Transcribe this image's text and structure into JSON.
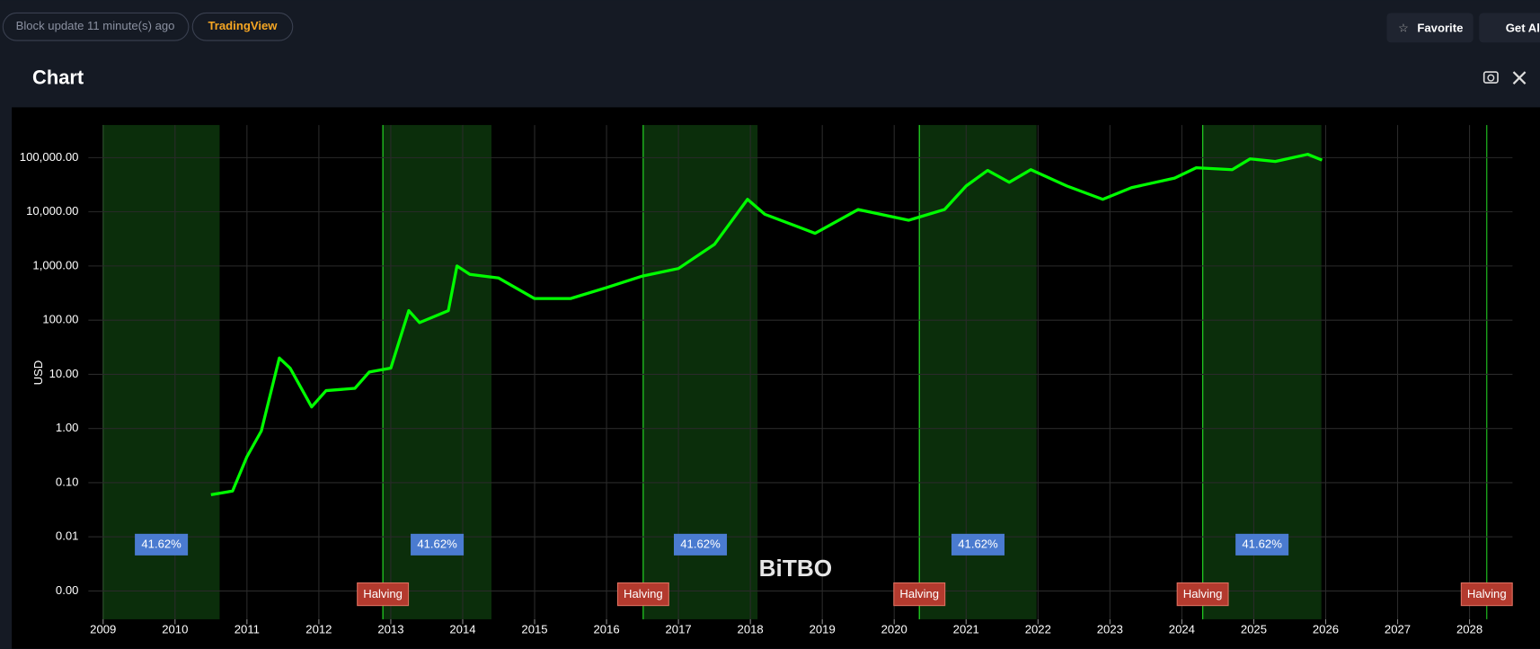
{
  "header": {
    "status": "Block update 11 minute(s) ago",
    "source": "TradingView",
    "buttons": [
      "Favorite",
      "Get Alerts"
    ]
  },
  "chart_data": {
    "type": "line",
    "title": "Chart",
    "y_label": "USD",
    "watermark": "BiTBO",
    "log_y": true,
    "grid": true,
    "xlim": [
      2007.73,
      2028.98
    ],
    "xticks": [
      2009,
      2010,
      2011,
      2012,
      2013,
      2014,
      2015,
      2016,
      2017,
      2018,
      2019,
      2020,
      2021,
      2022,
      2023,
      2024,
      2025,
      2026,
      2027,
      2028
    ],
    "ylim": [
      0.0003,
      400000
    ],
    "yticks": [
      {
        "value": 0.001,
        "label": "0.00"
      },
      {
        "value": 0.01,
        "label": "0.01"
      },
      {
        "value": 0.1,
        "label": "0.10"
      },
      {
        "value": 1,
        "label": "1.00"
      },
      {
        "value": 10,
        "label": "10.00"
      },
      {
        "value": 100,
        "label": "100.00"
      },
      {
        "value": 1000,
        "label": "1,000.00"
      },
      {
        "value": 10000,
        "label": "10,000.00"
      },
      {
        "value": 100000,
        "label": "100,000.00"
      }
    ],
    "x": [
      2010.5,
      2010.8,
      2011.0,
      2011.2,
      2011.45,
      2011.6,
      2011.9,
      2012.1,
      2012.5,
      2012.7,
      2013.0,
      2013.25,
      2013.4,
      2013.8,
      2013.92,
      2014.1,
      2014.5,
      2015.0,
      2015.5,
      2016.0,
      2016.5,
      2017.0,
      2017.5,
      2017.96,
      2018.2,
      2018.9,
      2019.5,
      2020.2,
      2020.7,
      2021.0,
      2021.3,
      2021.6,
      2021.9,
      2022.4,
      2022.9,
      2023.3,
      2023.9,
      2024.2,
      2024.7,
      2024.95,
      2025.3,
      2025.75,
      2025.95
    ],
    "series": [
      {
        "color": "#00ff00",
        "values": [
          0.06,
          0.07,
          0.3,
          0.9,
          20,
          13,
          2.5,
          5,
          5.5,
          11,
          13,
          150,
          90,
          150,
          1000,
          700,
          600,
          250,
          250,
          400,
          650,
          900,
          2500,
          17000,
          9000,
          4000,
          11000,
          7000,
          11000,
          30000,
          58000,
          35000,
          60000,
          30000,
          17000,
          28000,
          42000,
          65000,
          60000,
          95000,
          85000,
          115000,
          90000
        ]
      }
    ],
    "bands": [
      {
        "start": 2009.0,
        "end": 2010.62,
        "label": "41.62%"
      },
      {
        "start": 2012.89,
        "end": 2014.4,
        "label": "41.62%"
      },
      {
        "start": 2016.51,
        "end": 2018.1,
        "label": "41.62%"
      },
      {
        "start": 2020.35,
        "end": 2021.98,
        "label": "41.62%"
      },
      {
        "start": 2024.29,
        "end": 2025.94,
        "label": "41.62%"
      }
    ],
    "halvings": [
      {
        "x": 2012.89,
        "label": "Halving"
      },
      {
        "x": 2016.51,
        "label": "Halving"
      },
      {
        "x": 2020.35,
        "label": "Halving"
      },
      {
        "x": 2024.29,
        "label": "Halving"
      },
      {
        "x": 2028.24,
        "label": "Halving"
      }
    ]
  }
}
